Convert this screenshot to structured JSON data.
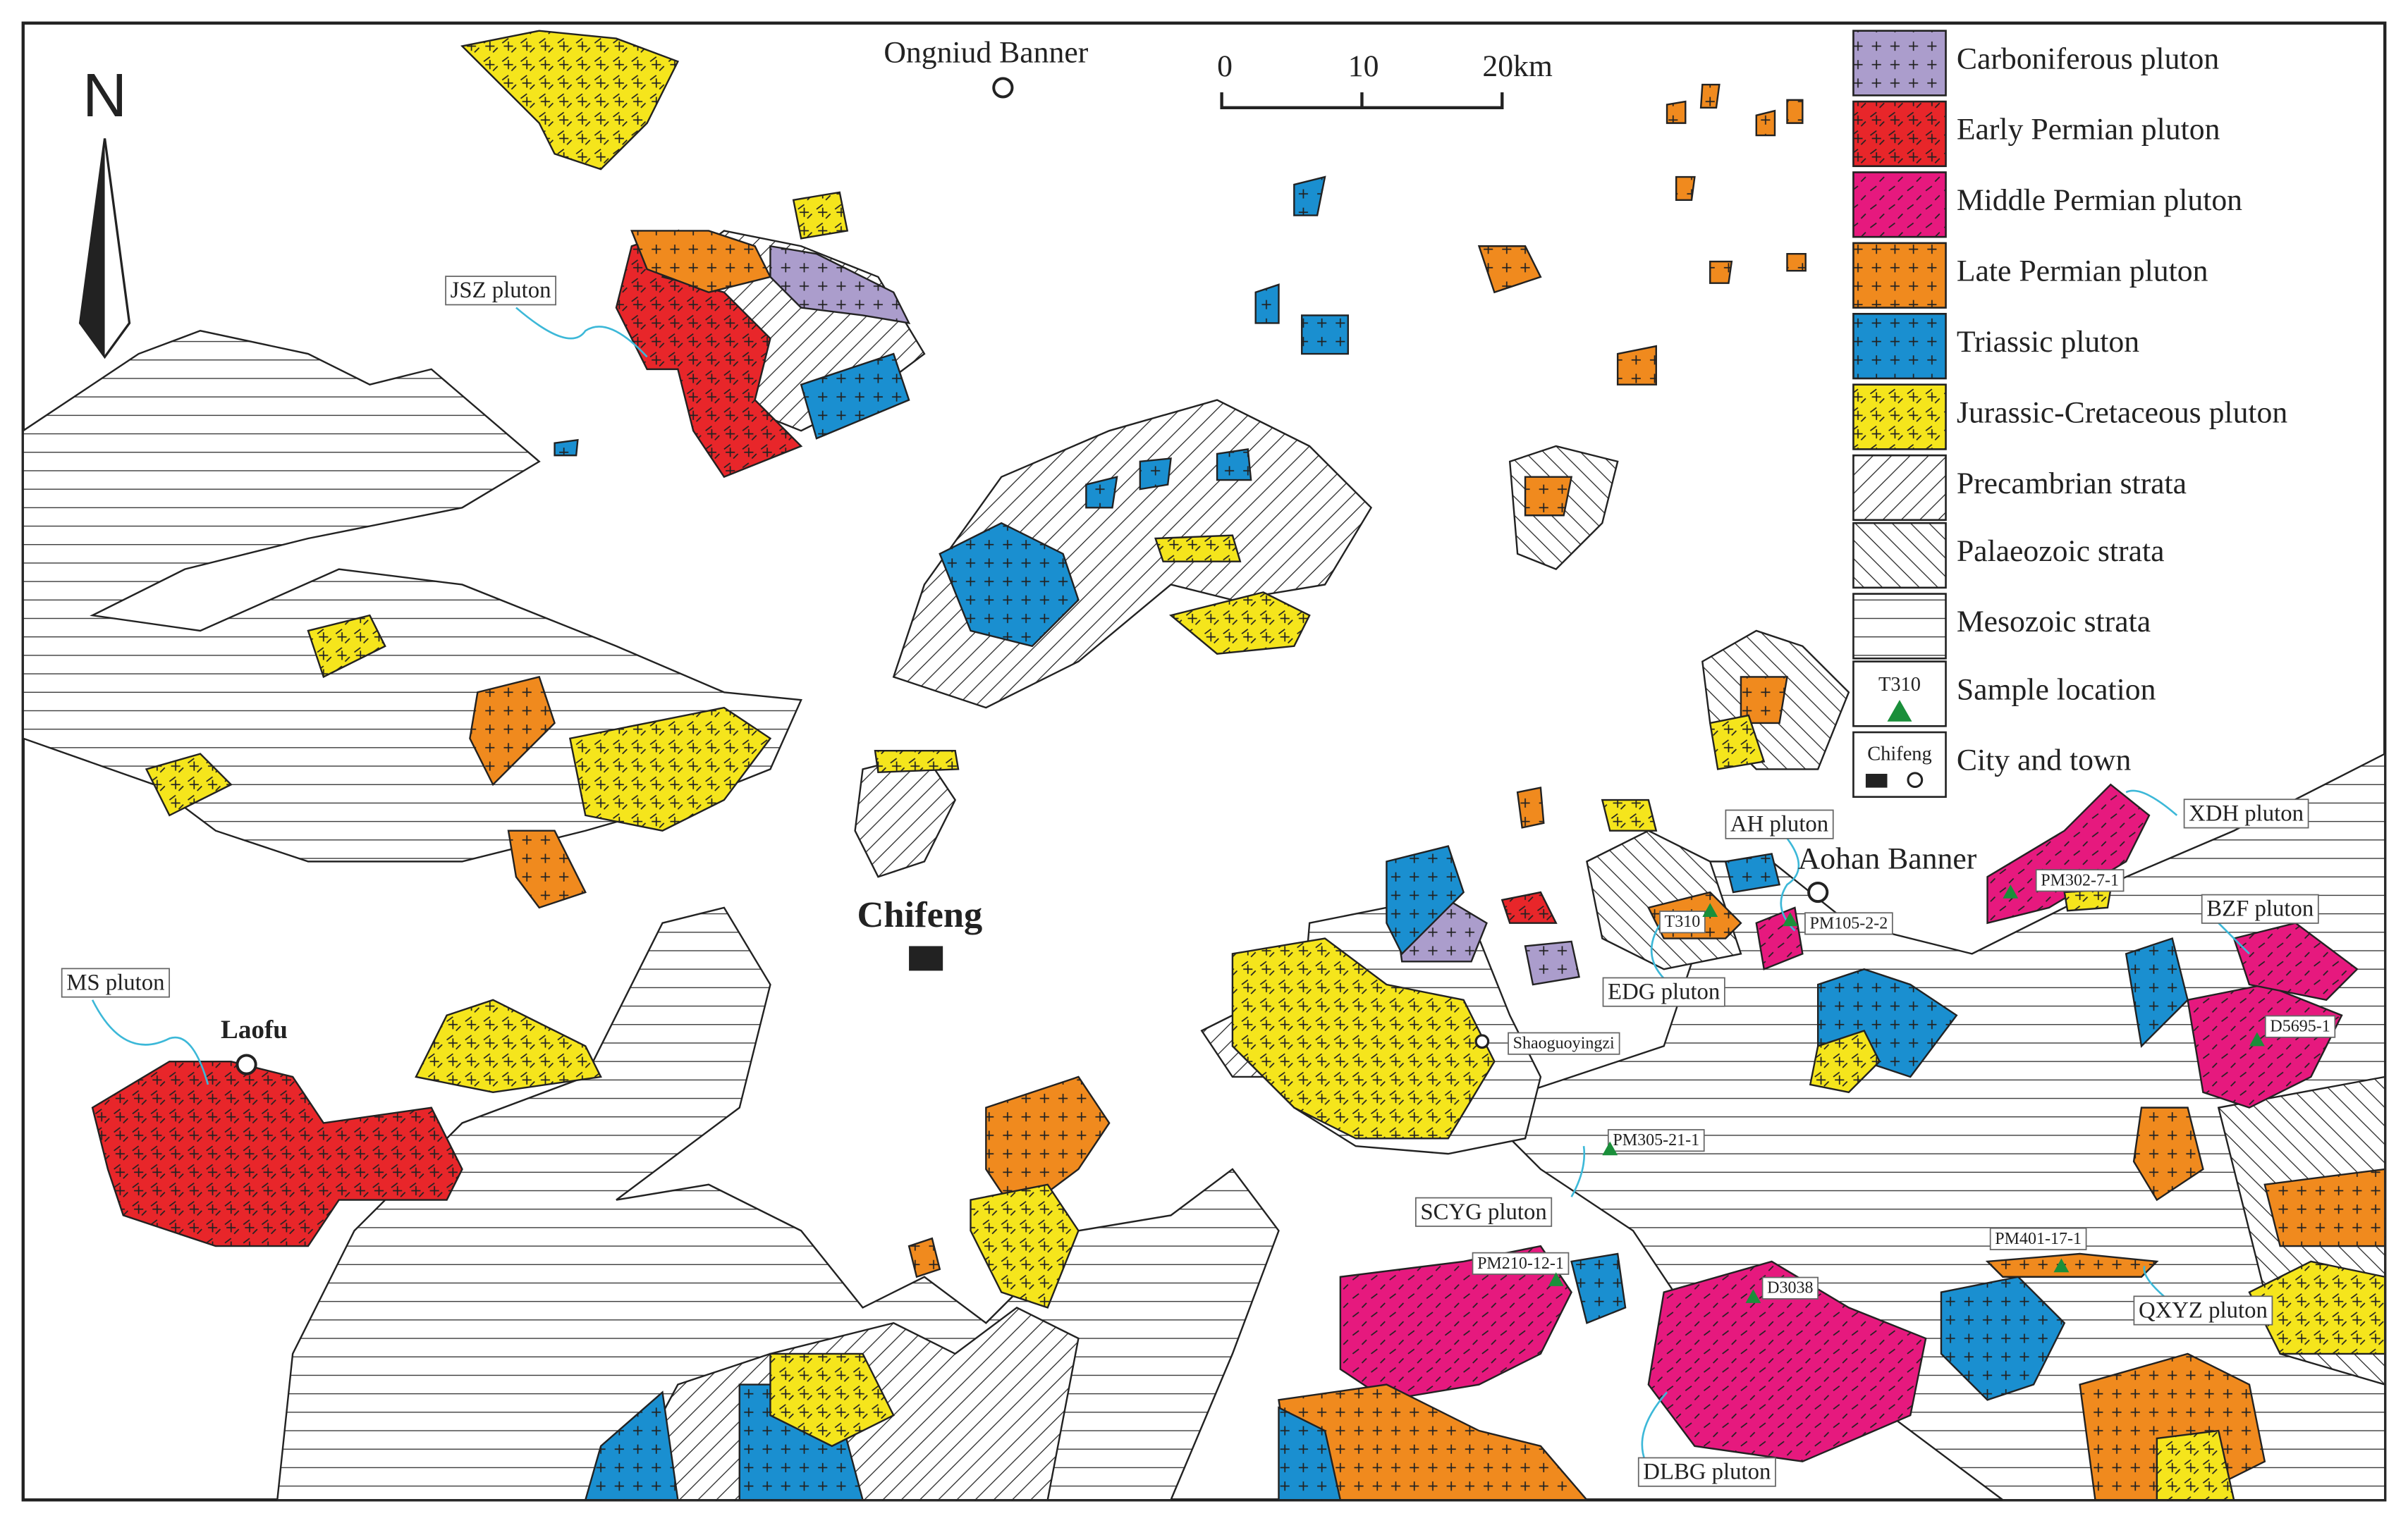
{
  "north_label": "N",
  "scale_bar": {
    "labels": [
      "0",
      "10",
      "20km"
    ]
  },
  "legend": {
    "items": [
      "Carboniferous pluton",
      "Early Permian pluton",
      "Middle Permian pluton",
      "Late Permian pluton",
      "Triassic pluton",
      "Jurassic-Cretaceous pluton",
      "Precambrian strata",
      "Palaeozoic strata",
      "Mesozoic strata",
      "Sample location",
      "City and town"
    ],
    "sample_symbol_label": "T310",
    "city_symbol_label": "Chifeng"
  },
  "places": [
    "Ongniud Banner",
    "Chifeng",
    "Laofu",
    "Aohan Banner",
    "Shaoguoyingzi"
  ],
  "plutons": [
    "JSZ pluton",
    "MS pluton",
    "AH pluton",
    "XDH pluton",
    "BZF pluton",
    "EDG pluton",
    "SCYG pluton",
    "QXYZ pluton",
    "DLBG pluton"
  ],
  "samples": [
    "T310",
    "PM105-2-2",
    "PM302-7-1",
    "D5695-1",
    "PM305-21-1",
    "PM210-12-1",
    "D3038",
    "PM401-17-1"
  ]
}
